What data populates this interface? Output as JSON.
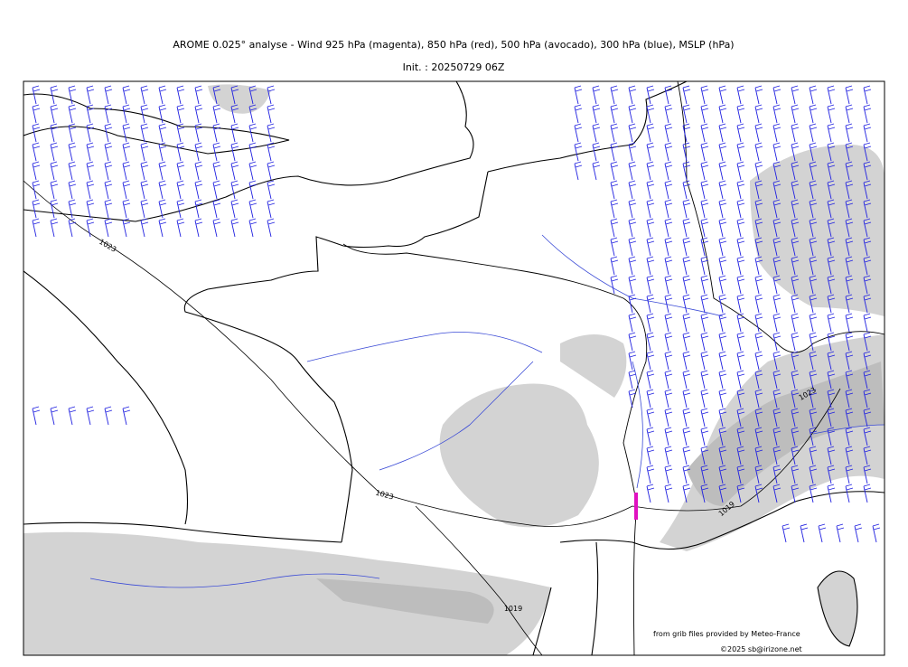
{
  "header": {
    "title": "AROME 0.025° analyse - Wind 925 hPa (magenta), 850 hPa (red), 500 hPa (avocado), 300 hPa (blue), MSLP (hPa)",
    "init": "Init. : 20250729 06Z"
  },
  "map": {
    "isobar_labels": [
      "1023",
      "1023",
      "1019",
      "1019",
      "1023"
    ]
  },
  "footer": {
    "source": "from grib files provided by Meteo-France",
    "copyright": "©2025 sb@irizone.net"
  }
}
